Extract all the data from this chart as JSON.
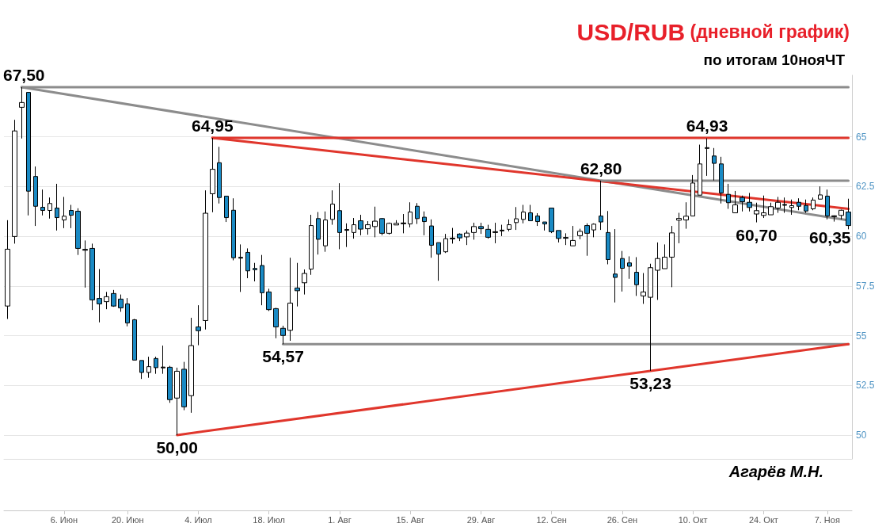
{
  "chart_data": {
    "type": "candlestick",
    "title": "USD/RUB (дневной график)",
    "subtitle": "по итогам 10нояЧТ",
    "categories": [
      null,
      null,
      null,
      null,
      null,
      null,
      null,
      null,
      "6. Июн",
      null,
      null,
      null,
      null,
      null,
      null,
      null,
      null,
      "20. Июн",
      null,
      null,
      null,
      null,
      null,
      null,
      null,
      null,
      null,
      "4. Июл",
      null,
      null,
      null,
      null,
      null,
      null,
      null,
      null,
      null,
      "18. Июл",
      null,
      null,
      null,
      null,
      null,
      null,
      null,
      null,
      null,
      "1. Авг",
      null,
      null,
      null,
      null,
      null,
      null,
      null,
      null,
      null,
      "15. Авг",
      null,
      null,
      null,
      null,
      null,
      null,
      null,
      null,
      null,
      "29. Авг",
      null,
      null,
      null,
      null,
      null,
      null,
      null,
      null,
      null,
      "12. Сен",
      null,
      null,
      null,
      null,
      null,
      null,
      null,
      null,
      null,
      "26. Сен",
      null,
      null,
      null,
      null,
      null,
      null,
      null,
      null,
      null,
      "10. Окт",
      null,
      null,
      null,
      null,
      null,
      null,
      null,
      null,
      null,
      "24. Окт",
      null,
      null,
      null,
      null,
      null,
      null,
      null,
      null,
      "7. Ноя",
      null,
      null,
      null
    ],
    "ohlc": [
      [
        56.49,
        60.81,
        55.84,
        59.35
      ],
      [
        59.99,
        65.86,
        59.63,
        65.3
      ],
      [
        66.49,
        67.5,
        64.92,
        66.73
      ],
      [
        67.24,
        67.24,
        61.05,
        62.27
      ],
      [
        63.01,
        63.51,
        60.52,
        61.51
      ],
      [
        61.46,
        62.35,
        61.05,
        61.3
      ],
      [
        61.3,
        61.95,
        60.89,
        61.65
      ],
      [
        61.42,
        62.64,
        60.29,
        60.94
      ],
      [
        60.82,
        61.98,
        60.41,
        61.01
      ],
      [
        61.3,
        61.58,
        60.41,
        61.06
      ],
      [
        61.26,
        61.41,
        59.06,
        59.39
      ],
      [
        59.34,
        59.79,
        57.42,
        59.3
      ],
      [
        59.39,
        59.63,
        56.29,
        56.8
      ],
      [
        56.87,
        58.35,
        55.67,
        56.6
      ],
      [
        56.71,
        57.2,
        56.33,
        56.96
      ],
      [
        57.12,
        57.3,
        56.45,
        56.49
      ],
      [
        56.84,
        57.07,
        56.2,
        56.4
      ],
      [
        56.6,
        56.89,
        55.47,
        55.64
      ],
      [
        55.8,
        55.84,
        53.77,
        53.77
      ],
      [
        53.75,
        53.75,
        52.82,
        53.15
      ],
      [
        53.15,
        53.94,
        52.88,
        53.44
      ],
      [
        53.85,
        53.94,
        53.08,
        53.39
      ],
      [
        53.42,
        54.5,
        53.08,
        53.38
      ],
      [
        53.41,
        53.48,
        51.62,
        51.78
      ],
      [
        51.86,
        53.39,
        50.0,
        53.21
      ],
      [
        53.31,
        53.68,
        51.25,
        51.42
      ],
      [
        51.98,
        55.9,
        51.12,
        54.5
      ],
      [
        55.44,
        56.53,
        54.52,
        55.25
      ],
      [
        55.76,
        62.31,
        55.31,
        61.16
      ],
      [
        62.14,
        64.95,
        61.21,
        63.37
      ],
      [
        63.7,
        64.5,
        61.65,
        61.95
      ],
      [
        62.02,
        62.02,
        60.72,
        60.94
      ],
      [
        61.31,
        61.91,
        58.79,
        58.92
      ],
      [
        58.94,
        59.59,
        57.2,
        58.9
      ],
      [
        59.19,
        59.39,
        57.89,
        58.26
      ],
      [
        58.38,
        58.66,
        57.73,
        58.32
      ],
      [
        58.53,
        59.06,
        56.53,
        57.16
      ],
      [
        57.2,
        57.36,
        56.24,
        56.31
      ],
      [
        56.36,
        56.4,
        54.87,
        55.44
      ],
      [
        55.37,
        55.5,
        54.57,
        55.01
      ],
      [
        55.27,
        58.92,
        54.74,
        56.64
      ],
      [
        57.4,
        58.66,
        56.47,
        57.26
      ],
      [
        57.66,
        58.33,
        57.07,
        58.13
      ],
      [
        58.35,
        61.08,
        58.06,
        60.54
      ],
      [
        60.89,
        61.22,
        59.08,
        59.85
      ],
      [
        59.52,
        61.25,
        59.22,
        60.82
      ],
      [
        60.85,
        62.31,
        60.58,
        61.62
      ],
      [
        61.29,
        62.67,
        59.35,
        60.19
      ],
      [
        60.34,
        60.65,
        59.46,
        60.3
      ],
      [
        60.19,
        60.92,
        59.88,
        60.58
      ],
      [
        60.78,
        61.08,
        60.05,
        60.36
      ],
      [
        60.38,
        60.76,
        60.08,
        60.58
      ],
      [
        60.49,
        61.49,
        59.95,
        60.76
      ],
      [
        60.89,
        60.92,
        60.05,
        60.15
      ],
      [
        60.15,
        60.69,
        60.09,
        60.65
      ],
      [
        60.57,
        60.81,
        60.57,
        60.65
      ],
      [
        60.67,
        61.12,
        60.15,
        60.63
      ],
      [
        60.62,
        61.71,
        60.45,
        61.22
      ],
      [
        61.51,
        61.67,
        60.62,
        60.89
      ],
      [
        60.96,
        61.25,
        60.05,
        60.74
      ],
      [
        60.52,
        60.85,
        58.92,
        59.55
      ],
      [
        59.68,
        59.68,
        57.76,
        59.1
      ],
      [
        59.22,
        60.12,
        59.16,
        59.88
      ],
      [
        59.91,
        60.42,
        59.63,
        59.87
      ],
      [
        60.11,
        60.15,
        59.76,
        59.92
      ],
      [
        59.97,
        60.29,
        59.56,
        60.16
      ],
      [
        60.19,
        60.68,
        59.83,
        60.49
      ],
      [
        60.49,
        60.68,
        60.12,
        60.38
      ],
      [
        60.35,
        60.58,
        59.88,
        59.95
      ],
      [
        60.23,
        60.68,
        59.65,
        60.19
      ],
      [
        60.31,
        60.58,
        60.01,
        60.27
      ],
      [
        60.35,
        60.85,
        60.25,
        60.58
      ],
      [
        60.69,
        61.47,
        60.32,
        60.88
      ],
      [
        60.85,
        61.58,
        60.65,
        61.22
      ],
      [
        61.18,
        61.58,
        60.78,
        60.78
      ],
      [
        61.02,
        61.16,
        60.52,
        60.74
      ],
      [
        60.72,
        60.72,
        60.29,
        60.62
      ],
      [
        61.42,
        61.42,
        60.16,
        60.23
      ],
      [
        60.29,
        60.29,
        59.69,
        59.89
      ],
      [
        59.94,
        60.15,
        59.56,
        59.9
      ],
      [
        59.52,
        60.52,
        59.52,
        59.79
      ],
      [
        60.03,
        60.38,
        59.85,
        60.25
      ],
      [
        60.54,
        60.65,
        59.02,
        60.15
      ],
      [
        60.32,
        60.65,
        59.95,
        60.61
      ],
      [
        61.02,
        62.8,
        60.32,
        60.72
      ],
      [
        60.19,
        61.27,
        58.59,
        58.83
      ],
      [
        58.1,
        60.36,
        56.67,
        57.93
      ],
      [
        58.88,
        59.26,
        57.22,
        58.39
      ],
      [
        58.66,
        58.99,
        57.86,
        58.49
      ],
      [
        58.19,
        58.95,
        57.0,
        57.56
      ],
      [
        57.0,
        58.15,
        56.6,
        57.2
      ],
      [
        56.93,
        58.62,
        53.23,
        58.42
      ],
      [
        58.29,
        59.69,
        56.8,
        58.88
      ],
      [
        58.37,
        59.59,
        58.37,
        58.95
      ],
      [
        58.95,
        60.52,
        57.44,
        60.17
      ],
      [
        60.81,
        61.18,
        59.65,
        60.9
      ],
      [
        60.82,
        61.71,
        60.38,
        61.01
      ],
      [
        61.02,
        63.08,
        61.02,
        62.68
      ],
      [
        62.07,
        64.61,
        62.07,
        63.64
      ],
      [
        64.46,
        64.93,
        63.04,
        64.42
      ],
      [
        64.04,
        64.44,
        62.81,
        63.67
      ],
      [
        63.64,
        64.0,
        61.65,
        62.18
      ],
      [
        62.11,
        62.64,
        61.38,
        61.69
      ],
      [
        61.18,
        62.28,
        61.18,
        61.58
      ],
      [
        61.95,
        62.05,
        61.25,
        61.74
      ],
      [
        61.71,
        62.18,
        61.25,
        61.45
      ],
      [
        61.12,
        61.69,
        60.7,
        61.29
      ],
      [
        61.05,
        62.05,
        60.92,
        61.18
      ],
      [
        61.08,
        61.69,
        61.08,
        61.49
      ],
      [
        61.42,
        61.98,
        61.18,
        61.71
      ],
      [
        61.6,
        61.95,
        61.18,
        61.56
      ],
      [
        61.45,
        61.85,
        61.08,
        61.54
      ],
      [
        61.71,
        61.91,
        61.31,
        61.51
      ],
      [
        61.55,
        61.85,
        61.18,
        61.27
      ],
      [
        61.38,
        61.95,
        61.31,
        61.82
      ],
      [
        61.87,
        62.51,
        61.85,
        62.08
      ],
      [
        62.02,
        62.35,
        60.85,
        61.02
      ],
      [
        61.03,
        61.05,
        60.74,
        60.99
      ],
      [
        61.05,
        61.34,
        60.85,
        61.31
      ],
      [
        61.22,
        61.89,
        60.35,
        60.54
      ]
    ],
    "colors": [
      "#ffffff",
      "#ffffff",
      "#ffffff",
      "#1a8ac4",
      "#1a8ac4",
      "#1a8ac4",
      "#ffffff",
      "#1a8ac4",
      "#ffffff",
      "#1a8ac4",
      "#1a8ac4",
      "#000000",
      "#1a8ac4",
      "#1a8ac4",
      "#ffffff",
      "#1a8ac4",
      "#1a8ac4",
      "#1a8ac4",
      "#1a8ac4",
      "#1a8ac4",
      "#ffffff",
      "#1a8ac4",
      "#000000",
      "#1a8ac4",
      "#ffffff",
      "#1a8ac4",
      "#ffffff",
      "#1a8ac4",
      "#ffffff",
      "#ffffff",
      "#1a8ac4",
      "#1a8ac4",
      "#1a8ac4",
      "#000000",
      "#1a8ac4",
      "#1a8ac4",
      "#1a8ac4",
      "#1a8ac4",
      "#1a8ac4",
      "#1a8ac4",
      "#ffffff",
      "#1a8ac4",
      "#ffffff",
      "#ffffff",
      "#1a8ac4",
      "#ffffff",
      "#ffffff",
      "#1a8ac4",
      "#000000",
      "#ffffff",
      "#1a8ac4",
      "#ffffff",
      "#ffffff",
      "#1a8ac4",
      "#ffffff",
      "#ffffff",
      "#000000",
      "#ffffff",
      "#1a8ac4",
      "#1a8ac4",
      "#1a8ac4",
      "#1a8ac4",
      "#ffffff",
      "#000000",
      "#1a8ac4",
      "#ffffff",
      "#ffffff",
      "#1a8ac4",
      "#1a8ac4",
      "#000000",
      "#000000",
      "#ffffff",
      "#ffffff",
      "#ffffff",
      "#1a8ac4",
      "#1a8ac4",
      "#1a8ac4",
      "#1a8ac4",
      "#1a8ac4",
      "#000000",
      "#ffffff",
      "#ffffff",
      "#1a8ac4",
      "#ffffff",
      "#1a8ac4",
      "#1a8ac4",
      "#1a8ac4",
      "#1a8ac4",
      "#1a8ac4",
      "#1a8ac4",
      "#ffffff",
      "#ffffff",
      "#ffffff",
      "#ffffff",
      "#ffffff",
      "#ffffff",
      "#ffffff",
      "#ffffff",
      "#ffffff",
      "#000000",
      "#1a8ac4",
      "#1a8ac4",
      "#1a8ac4",
      "#ffffff",
      "#1a8ac4",
      "#1a8ac4",
      "#ffffff",
      "#ffffff",
      "#ffffff",
      "#ffffff",
      "#000000",
      "#ffffff",
      "#1a8ac4",
      "#1a8ac4",
      "#ffffff",
      "#ffffff",
      "#1a8ac4",
      "#000000",
      "#ffffff",
      "#1a8ac4"
    ],
    "series": [
      {
        "type": "line",
        "color": "#8c8c8c",
        "values": [
          null,
          null,
          67.5,
          null,
          null,
          null,
          null,
          null,
          null,
          null,
          null,
          null,
          null,
          null,
          null,
          null,
          null,
          null,
          null,
          null,
          null,
          null,
          null,
          null,
          null,
          null,
          null,
          null,
          null,
          null,
          null,
          null,
          null,
          null,
          null,
          null,
          null,
          null,
          null,
          null,
          null,
          null,
          null,
          null,
          null,
          null,
          null,
          null,
          null,
          null,
          null,
          null,
          null,
          null,
          null,
          null,
          null,
          null,
          null,
          null,
          null,
          null,
          null,
          null,
          null,
          null,
          null,
          null,
          null,
          null,
          null,
          null,
          null,
          null,
          null,
          null,
          null,
          null,
          null,
          null,
          null,
          null,
          null,
          null,
          null,
          null,
          null,
          null,
          null,
          null,
          null,
          null,
          null,
          null,
          null,
          null,
          null,
          null,
          null,
          null,
          null,
          null,
          null,
          null,
          null,
          null,
          null,
          null,
          null,
          null,
          null,
          null,
          null,
          null,
          null,
          null,
          null,
          null,
          null,
          67.5
        ]
      },
      {
        "type": "line",
        "color": "#8c8c8c",
        "values": [
          null,
          null,
          67.5,
          null,
          null,
          null,
          null,
          null,
          null,
          null,
          null,
          null,
          null,
          null,
          null,
          null,
          null,
          null,
          null,
          null,
          null,
          null,
          null,
          null,
          null,
          null,
          null,
          null,
          null,
          null,
          null,
          null,
          null,
          null,
          null,
          null,
          null,
          null,
          null,
          null,
          null,
          null,
          null,
          null,
          null,
          null,
          null,
          null,
          null,
          null,
          null,
          null,
          null,
          null,
          null,
          null,
          null,
          null,
          null,
          null,
          null,
          null,
          null,
          null,
          null,
          null,
          null,
          null,
          null,
          null,
          null,
          null,
          null,
          null,
          null,
          null,
          null,
          null,
          null,
          null,
          null,
          null,
          null,
          null,
          62.8,
          null,
          null,
          null,
          null,
          null,
          null,
          null,
          null,
          null,
          null,
          null,
          null,
          null,
          null,
          null,
          null,
          null,
          null,
          null,
          null,
          null,
          null,
          null,
          null,
          null,
          null,
          null,
          null,
          null,
          null,
          null,
          null,
          null,
          null,
          60.8
        ]
      },
      {
        "type": "line",
        "color": "#e0362c",
        "values": [
          null,
          null,
          null,
          null,
          null,
          null,
          null,
          null,
          null,
          null,
          null,
          null,
          null,
          null,
          null,
          null,
          null,
          null,
          null,
          null,
          null,
          null,
          null,
          null,
          null,
          null,
          null,
          null,
          null,
          64.95,
          null,
          null,
          null,
          null,
          null,
          null,
          null,
          null,
          null,
          null,
          null,
          null,
          null,
          null,
          null,
          null,
          null,
          null,
          null,
          null,
          null,
          null,
          null,
          null,
          null,
          null,
          null,
          null,
          null,
          null,
          null,
          null,
          null,
          null,
          null,
          null,
          null,
          null,
          null,
          null,
          null,
          null,
          null,
          null,
          null,
          null,
          null,
          null,
          null,
          null,
          null,
          null,
          null,
          null,
          null,
          null,
          null,
          null,
          null,
          null,
          null,
          null,
          null,
          null,
          null,
          null,
          null,
          null,
          null,
          null,
          null,
          null,
          null,
          null,
          null,
          null,
          null,
          null,
          null,
          null,
          null,
          null,
          null,
          null,
          null,
          null,
          null,
          null,
          null,
          64.95
        ]
      },
      {
        "type": "line",
        "color": "#e0362c",
        "values": [
          null,
          null,
          null,
          null,
          null,
          null,
          null,
          null,
          null,
          null,
          null,
          null,
          null,
          null,
          null,
          null,
          null,
          null,
          null,
          null,
          null,
          null,
          null,
          null,
          null,
          null,
          null,
          null,
          null,
          64.95,
          null,
          null,
          null,
          null,
          null,
          null,
          null,
          null,
          null,
          null,
          null,
          null,
          null,
          null,
          null,
          null,
          null,
          null,
          null,
          null,
          null,
          null,
          null,
          null,
          null,
          null,
          null,
          null,
          null,
          null,
          null,
          null,
          null,
          null,
          null,
          null,
          null,
          null,
          null,
          null,
          null,
          null,
          null,
          null,
          null,
          null,
          null,
          null,
          null,
          null,
          null,
          null,
          null,
          null,
          null,
          null,
          null,
          null,
          null,
          null,
          null,
          null,
          null,
          null,
          null,
          null,
          null,
          null,
          null,
          null,
          null,
          null,
          null,
          null,
          null,
          null,
          null,
          null,
          null,
          null,
          null,
          null,
          null,
          null,
          null,
          null,
          null,
          null,
          null,
          61.38
        ]
      },
      {
        "type": "line",
        "color": "#8c8c8c",
        "values": [
          null,
          null,
          null,
          null,
          null,
          null,
          null,
          null,
          null,
          null,
          null,
          null,
          null,
          null,
          null,
          null,
          null,
          null,
          null,
          null,
          null,
          null,
          null,
          null,
          null,
          null,
          null,
          null,
          null,
          null,
          null,
          null,
          null,
          null,
          null,
          null,
          null,
          null,
          null,
          null,
          null,
          null,
          null,
          null,
          null,
          null,
          null,
          null,
          null,
          null,
          null,
          null,
          null,
          null,
          null,
          null,
          null,
          null,
          null,
          null,
          null,
          null,
          null,
          null,
          null,
          null,
          null,
          null,
          null,
          null,
          null,
          null,
          null,
          null,
          null,
          null,
          null,
          null,
          null,
          null,
          null,
          null,
          null,
          null,
          62.8,
          null,
          null,
          null,
          null,
          null,
          null,
          null,
          null,
          null,
          null,
          null,
          null,
          null,
          null,
          null,
          null,
          null,
          null,
          null,
          null,
          null,
          null,
          null,
          null,
          null,
          null,
          null,
          null,
          null,
          null,
          null,
          null,
          null,
          null,
          62.8
        ]
      },
      {
        "type": "line",
        "color": "#8c8c8c",
        "values": [
          null,
          null,
          null,
          null,
          null,
          null,
          null,
          null,
          null,
          null,
          null,
          null,
          null,
          null,
          null,
          null,
          null,
          null,
          null,
          null,
          null,
          null,
          null,
          null,
          null,
          null,
          null,
          null,
          null,
          null,
          null,
          null,
          null,
          null,
          null,
          null,
          null,
          null,
          null,
          54.57,
          null,
          null,
          null,
          null,
          null,
          null,
          null,
          null,
          null,
          null,
          null,
          null,
          null,
          null,
          null,
          null,
          null,
          null,
          null,
          null,
          null,
          null,
          null,
          null,
          null,
          null,
          null,
          null,
          null,
          null,
          null,
          null,
          null,
          null,
          null,
          null,
          null,
          null,
          null,
          null,
          null,
          null,
          null,
          null,
          null,
          null,
          null,
          null,
          null,
          null,
          null,
          null,
          null,
          null,
          null,
          null,
          null,
          null,
          null,
          null,
          null,
          null,
          null,
          null,
          null,
          null,
          null,
          null,
          null,
          null,
          null,
          null,
          null,
          null,
          null,
          null,
          null,
          null,
          null,
          54.57
        ]
      },
      {
        "type": "line",
        "color": "#e0362c",
        "values": [
          null,
          null,
          null,
          null,
          null,
          null,
          null,
          null,
          null,
          null,
          null,
          null,
          null,
          null,
          null,
          null,
          null,
          null,
          null,
          null,
          null,
          null,
          null,
          null,
          50,
          null,
          null,
          null,
          null,
          null,
          null,
          null,
          null,
          null,
          null,
          null,
          null,
          null,
          null,
          null,
          null,
          null,
          null,
          null,
          null,
          null,
          null,
          null,
          null,
          null,
          null,
          null,
          null,
          null,
          null,
          null,
          null,
          null,
          null,
          null,
          null,
          null,
          null,
          null,
          null,
          null,
          null,
          null,
          null,
          null,
          null,
          null,
          null,
          null,
          null,
          null,
          null,
          null,
          null,
          null,
          null,
          null,
          null,
          null,
          null,
          null,
          null,
          null,
          null,
          null,
          null,
          53.23,
          null,
          null,
          null,
          null,
          null,
          null,
          null,
          null,
          null,
          null,
          null,
          null,
          null,
          null,
          null,
          null,
          null,
          null,
          null,
          null,
          null,
          null,
          null,
          null,
          null,
          null,
          null,
          54.57
        ]
      }
    ],
    "ylim": [
      48.8,
      68.1
    ],
    "yticks": [
      50,
      52.5,
      55,
      57.5,
      60,
      62.5,
      65
    ],
    "grid": "y",
    "annotations": [
      {
        "text": "67,50",
        "y": 67.5
      },
      {
        "text": "64,95",
        "y": 64.95
      },
      {
        "text": "50,00",
        "y": 50
      },
      {
        "text": "54,57",
        "y": 54.57
      },
      {
        "text": "62,80",
        "y": 62.8
      },
      {
        "text": "64,93",
        "y": 64.93
      },
      {
        "text": "53,23",
        "y": 53.23
      },
      {
        "text": "60,70",
        "y": 60.7
      },
      "60,35",
      "Агарёв М.Н."
    ]
  }
}
